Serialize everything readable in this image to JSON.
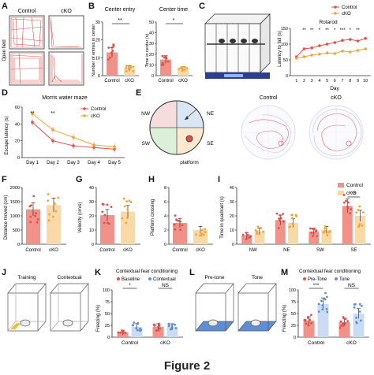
{
  "figure_caption": "Figure 2",
  "colors": {
    "control": "#e2504a",
    "cko": "#f0a53a",
    "control_fill": "#f1928a",
    "cko_fill": "#f9d9a8",
    "sig": "#111111",
    "blue": "#5d8ed6",
    "blue_fill": "#c9dcf4"
  },
  "panels": {
    "A": {
      "label": "A",
      "row_label": "Open field",
      "col1": "Control",
      "col2": "cKO"
    },
    "B": {
      "label": "B",
      "title1": "Center entry",
      "title2": "Center time",
      "ylabel1": "Number of entries in center",
      "ylabel2": "Time in center (s)",
      "sig1": "**",
      "sig2": "*",
      "x1": "Control",
      "x2": "cKO"
    },
    "C": {
      "label": "C",
      "title": "Rotarod",
      "ylabel": "Latency to fall (s)",
      "xlabel": "Day",
      "legend_control": "Control",
      "legend_cko": "cKO",
      "days": [
        "1",
        "2",
        "3",
        "4",
        "5",
        "6",
        "7",
        "8",
        "9",
        "10"
      ],
      "yticks": [
        "0",
        "50",
        "100",
        "150"
      ],
      "sig": [
        "",
        "**",
        "**",
        "*",
        "**",
        "*",
        "***",
        "*",
        "**",
        ""
      ]
    },
    "D": {
      "label": "D",
      "title": "Morris water maze",
      "ylabel": "Escape latency (s)",
      "legend_control": "Control",
      "legend_cko": "cKO",
      "days": [
        "Day 1",
        "Day 2",
        "Day 3",
        "Day 4",
        "Day 5"
      ],
      "yticks": [
        "0",
        "20",
        "40",
        "60"
      ],
      "sig": [
        "**",
        "**",
        "",
        "",
        ""
      ]
    },
    "E": {
      "label": "E",
      "quadrants": [
        "NW",
        "NE",
        "SW",
        "SE"
      ],
      "platform": "platform",
      "track1": "Control",
      "track2": "cKO"
    },
    "F": {
      "label": "F",
      "ylabel": "Distance moved (cm)",
      "yticks": [
        "0",
        "500",
        "1000",
        "1500",
        "2000"
      ]
    },
    "G": {
      "label": "G",
      "ylabel": "Velocity (cm/s)",
      "yticks": [
        "0",
        "10",
        "20",
        "30",
        "40"
      ]
    },
    "H": {
      "label": "H",
      "ylabel": "Platform crossing",
      "yticks": [
        "0",
        "2",
        "4",
        "6",
        "8"
      ]
    },
    "I": {
      "label": "I",
      "ylabel": "Time in quadrant (s)",
      "yticks": [
        "0",
        "10",
        "20",
        "30",
        "40"
      ],
      "groups": [
        "NW",
        "NE",
        "SW",
        "SE"
      ],
      "legend_control": "Control",
      "legend_cko": "cKO",
      "sig_se": "**"
    },
    "J": {
      "label": "J",
      "box1": "Training",
      "box2": "Contextual"
    },
    "K": {
      "label": "K",
      "title": "Contextual fear conditioning",
      "ylabel": "Freezing (%)",
      "legend1": "Baseline",
      "legend2": "Contextual",
      "sig1": "*",
      "sig2": "NS",
      "yticks": [
        "0",
        "25",
        "50",
        "75",
        "100"
      ],
      "groups": [
        "Control",
        "cKO"
      ]
    },
    "L": {
      "label": "L",
      "box1": "Pre-tone",
      "box2": "Tone"
    },
    "M": {
      "label": "M",
      "title": "Contextual fear conditioning",
      "ylabel": "Freezing (%)",
      "legend1": "Pre-Tone",
      "legend2": "Tone",
      "sig1": "***",
      "sig2": "NS",
      "yticks": [
        "0",
        "25",
        "50",
        "75",
        "100"
      ],
      "groups": [
        "Control",
        "cKO"
      ]
    }
  },
  "chart_data": [
    {
      "panel": "B-left",
      "type": "bar",
      "title": "Center entry",
      "ylabel": "Number of entries in center",
      "categories": [
        "Control",
        "cKO"
      ],
      "values": [
        13,
        4
      ],
      "ylim": [
        0,
        30
      ]
    },
    {
      "panel": "B-right",
      "type": "bar",
      "title": "Center time",
      "ylabel": "Time in center (s)",
      "categories": [
        "Control",
        "cKO"
      ],
      "values": [
        15,
        6
      ],
      "ylim": [
        0,
        50
      ]
    },
    {
      "panel": "C",
      "type": "line",
      "title": "Rotarod",
      "xlabel": "Day",
      "ylabel": "Latency to fall (s)",
      "x": [
        1,
        2,
        3,
        4,
        5,
        6,
        7,
        8,
        9,
        10
      ],
      "ylim": [
        0,
        150
      ],
      "series": [
        {
          "name": "Control",
          "values": [
            60,
            85,
            88,
            95,
            100,
            105,
            112,
            115,
            110,
            118
          ]
        },
        {
          "name": "cKO",
          "values": [
            55,
            60,
            65,
            68,
            72,
            70,
            78,
            75,
            80,
            85
          ]
        }
      ]
    },
    {
      "panel": "D",
      "type": "line",
      "title": "Morris water maze",
      "ylabel": "Escape latency (s)",
      "categories": [
        "Day 1",
        "Day 2",
        "Day 3",
        "Day 4",
        "Day 5"
      ],
      "ylim": [
        0,
        60
      ],
      "series": [
        {
          "name": "Control",
          "values": [
            42,
            20,
            14,
            12,
            10
          ]
        },
        {
          "name": "cKO",
          "values": [
            52,
            33,
            24,
            15,
            13
          ]
        }
      ]
    },
    {
      "panel": "F",
      "type": "bar",
      "ylabel": "Distance moved (cm)",
      "categories": [
        "Control",
        "cKO"
      ],
      "values": [
        1230,
        1380
      ],
      "ylim": [
        0,
        2000
      ]
    },
    {
      "panel": "G",
      "type": "bar",
      "ylabel": "Velocity (cm/s)",
      "categories": [
        "Control",
        "cKO"
      ],
      "values": [
        20.5,
        23
      ],
      "ylim": [
        0,
        40
      ]
    },
    {
      "panel": "H",
      "type": "bar",
      "ylabel": "Platform crossing",
      "categories": [
        "Control",
        "cKO"
      ],
      "values": [
        3,
        2
      ],
      "ylim": [
        0,
        8
      ]
    },
    {
      "panel": "I",
      "type": "bar",
      "ylabel": "Time in quadrant (s)",
      "categories": [
        "NW",
        "NE",
        "SW",
        "SE"
      ],
      "ylim": [
        0,
        40
      ],
      "series": [
        {
          "name": "Control",
          "values": [
            6,
            17,
            9,
            27
          ]
        },
        {
          "name": "cKO",
          "values": [
            9,
            15,
            10,
            20
          ]
        }
      ]
    },
    {
      "panel": "K",
      "type": "bar",
      "title": "Contextual fear conditioning",
      "ylabel": "Freezing (%)",
      "categories": [
        "Control",
        "cKO"
      ],
      "ylim": [
        0,
        100
      ],
      "series": [
        {
          "name": "Baseline",
          "values": [
            10,
            22
          ]
        },
        {
          "name": "Contextual",
          "values": [
            22,
            22
          ]
        }
      ]
    },
    {
      "panel": "M",
      "type": "bar",
      "title": "Contextual fear conditioning",
      "ylabel": "Freezing (%)",
      "categories": [
        "Control",
        "cKO"
      ],
      "ylim": [
        0,
        100
      ],
      "series": [
        {
          "name": "Pre-Tone",
          "values": [
            35,
            32
          ]
        },
        {
          "name": "Tone",
          "values": [
            70,
            50
          ]
        }
      ]
    }
  ]
}
